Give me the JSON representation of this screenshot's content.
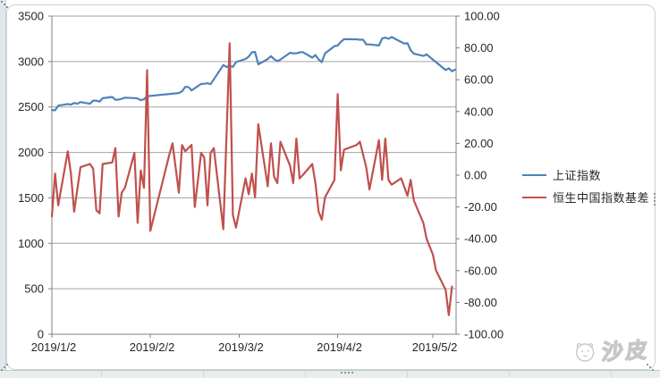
{
  "chart_data": {
    "type": "line",
    "title": "",
    "grid": true,
    "x_axis": {
      "tick_labels": [
        "2019/1/2",
        "2019/2/2",
        "2019/3/2",
        "2019/4/2",
        "2019/5/2"
      ],
      "tick_days": [
        0,
        31,
        59,
        90,
        120
      ],
      "total_days": 127.3
    },
    "left_axis": {
      "min": 0,
      "max": 3500,
      "step": 500,
      "tick_labels": [
        "3500",
        "3000",
        "2500",
        "2000",
        "1500",
        "1000",
        "500",
        "0"
      ]
    },
    "right_axis": {
      "min": -100,
      "max": 100,
      "step": 20,
      "tick_labels": [
        "100.00",
        "80.00",
        "60.00",
        "40.00",
        "20.00",
        "0.00",
        "-20.00",
        "-40.00",
        "-60.00",
        "-80.00",
        "-100.00"
      ]
    },
    "legend": {
      "position": "right",
      "entries": [
        {
          "label": "上证指数",
          "color": "#4f81bd"
        },
        {
          "label": "恒生中国指数基差",
          "color": "#c0504d"
        }
      ]
    },
    "series": [
      {
        "name": "上证指数",
        "axis": "left",
        "color": "#4f81bd",
        "points": [
          [
            0,
            2465
          ],
          [
            1,
            2464
          ],
          [
            2,
            2515
          ],
          [
            5,
            2533
          ],
          [
            6,
            2526
          ],
          [
            7,
            2544
          ],
          [
            8,
            2535
          ],
          [
            9,
            2554
          ],
          [
            12,
            2536
          ],
          [
            13,
            2570
          ],
          [
            14,
            2570
          ],
          [
            15,
            2559
          ],
          [
            16,
            2596
          ],
          [
            19,
            2610
          ],
          [
            20,
            2580
          ],
          [
            21,
            2581
          ],
          [
            22,
            2591
          ],
          [
            23,
            2602
          ],
          [
            26,
            2597
          ],
          [
            27,
            2594
          ],
          [
            28,
            2575
          ],
          [
            29,
            2585
          ],
          [
            30,
            2618
          ],
          [
            40,
            2654
          ],
          [
            41,
            2672
          ],
          [
            42,
            2721
          ],
          [
            43,
            2720
          ],
          [
            44,
            2682
          ],
          [
            47,
            2754
          ],
          [
            48,
            2756
          ],
          [
            49,
            2761
          ],
          [
            50,
            2751
          ],
          [
            51,
            2804
          ],
          [
            54,
            2961
          ],
          [
            55,
            2941
          ],
          [
            56,
            2953
          ],
          [
            57,
            2941
          ],
          [
            58,
            2994
          ],
          [
            61,
            3028
          ],
          [
            62,
            3054
          ],
          [
            63,
            3102
          ],
          [
            64,
            3106
          ],
          [
            65,
            2969
          ],
          [
            68,
            3027
          ],
          [
            69,
            3060
          ],
          [
            70,
            3026
          ],
          [
            71,
            3004
          ],
          [
            72,
            3022
          ],
          [
            75,
            3096
          ],
          [
            76,
            3091
          ],
          [
            77,
            3090
          ],
          [
            78,
            3101
          ],
          [
            79,
            3104
          ],
          [
            82,
            3043
          ],
          [
            83,
            3071
          ],
          [
            84,
            3022
          ],
          [
            85,
            2994
          ],
          [
            86,
            3090
          ],
          [
            89,
            3170
          ],
          [
            90,
            3176
          ],
          [
            91,
            3216
          ],
          [
            92,
            3246
          ],
          [
            96,
            3244
          ],
          [
            97,
            3239
          ],
          [
            98,
            3241
          ],
          [
            99,
            3189
          ],
          [
            100,
            3188
          ],
          [
            103,
            3177
          ],
          [
            104,
            3253
          ],
          [
            105,
            3263
          ],
          [
            106,
            3250
          ],
          [
            107,
            3270
          ],
          [
            110,
            3215
          ],
          [
            111,
            3198
          ],
          [
            112,
            3201
          ],
          [
            113,
            3123
          ],
          [
            114,
            3086
          ],
          [
            117,
            3062
          ],
          [
            118,
            3078
          ],
          [
            124,
            2906
          ],
          [
            125,
            2926
          ],
          [
            126,
            2893
          ],
          [
            127,
            2910
          ]
        ]
      },
      {
        "name": "恒生中国指数基差",
        "axis": "right",
        "color": "#c0504d",
        "points": [
          [
            0,
            -26
          ],
          [
            1,
            1
          ],
          [
            2,
            -19
          ],
          [
            5,
            15
          ],
          [
            6,
            1
          ],
          [
            7,
            -23
          ],
          [
            9,
            5
          ],
          [
            12,
            7
          ],
          [
            13,
            4
          ],
          [
            14,
            -22
          ],
          [
            15,
            -24
          ],
          [
            16,
            7
          ],
          [
            19,
            8
          ],
          [
            20,
            17
          ],
          [
            21,
            -26
          ],
          [
            22,
            -11
          ],
          [
            23,
            -8
          ],
          [
            26,
            14
          ],
          [
            27,
            -30
          ],
          [
            28,
            3
          ],
          [
            29,
            -8
          ],
          [
            30,
            66
          ],
          [
            31,
            -35
          ],
          [
            37,
            13
          ],
          [
            38,
            20
          ],
          [
            40,
            -11
          ],
          [
            41,
            19
          ],
          [
            42,
            15
          ],
          [
            44,
            19
          ],
          [
            45,
            -20
          ],
          [
            47,
            14
          ],
          [
            48,
            11
          ],
          [
            49,
            -19
          ],
          [
            50,
            14
          ],
          [
            51,
            17
          ],
          [
            54,
            -34
          ],
          [
            56,
            83
          ],
          [
            57,
            -25
          ],
          [
            58,
            -33
          ],
          [
            61,
            -2
          ],
          [
            62,
            -12
          ],
          [
            63,
            1
          ],
          [
            64,
            -14
          ],
          [
            65,
            32
          ],
          [
            68,
            -7
          ],
          [
            69,
            20
          ],
          [
            70,
            -1
          ],
          [
            71,
            -5
          ],
          [
            72,
            21
          ],
          [
            75,
            6
          ],
          [
            76,
            -5
          ],
          [
            77,
            23
          ],
          [
            78,
            -2
          ],
          [
            79,
            0
          ],
          [
            82,
            7
          ],
          [
            83,
            -5
          ],
          [
            84,
            -23
          ],
          [
            85,
            -28
          ],
          [
            86,
            -14
          ],
          [
            89,
            -3
          ],
          [
            90,
            51
          ],
          [
            91,
            3
          ],
          [
            92,
            16
          ],
          [
            96,
            19
          ],
          [
            97,
            21
          ],
          [
            98,
            13
          ],
          [
            99,
            5
          ],
          [
            100,
            -9
          ],
          [
            103,
            22
          ],
          [
            104,
            -3
          ],
          [
            105,
            23
          ],
          [
            106,
            -3
          ],
          [
            107,
            -6
          ],
          [
            110,
            -2
          ],
          [
            112,
            -13
          ],
          [
            113,
            -3
          ],
          [
            114,
            -16
          ],
          [
            117,
            -30
          ],
          [
            118,
            -40
          ],
          [
            120,
            -50
          ],
          [
            121,
            -60
          ],
          [
            124,
            -72
          ],
          [
            125,
            -88
          ],
          [
            126,
            -70
          ]
        ]
      }
    ]
  },
  "watermark": {
    "text": "沙皮"
  }
}
